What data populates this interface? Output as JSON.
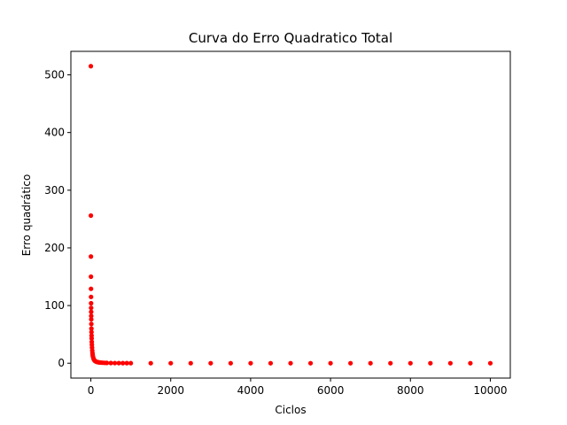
{
  "chart_data": {
    "type": "scatter",
    "title": "Curva do Erro Quadratico Total",
    "xlabel": "Ciclos",
    "ylabel": "Erro quadrático",
    "xlim": [
      -500,
      10500
    ],
    "ylim": [
      -25.75,
      540.75
    ],
    "xticks": [
      0,
      2000,
      4000,
      6000,
      8000,
      10000
    ],
    "xtick_labels": [
      "0",
      "2000",
      "4000",
      "6000",
      "8000",
      "10000"
    ],
    "yticks": [
      0,
      100,
      200,
      300,
      400,
      500
    ],
    "ytick_labels": [
      "0",
      "100",
      "200",
      "300",
      "400",
      "500"
    ],
    "grid": false,
    "legend": "none",
    "color": "#ff0000",
    "series": [
      {
        "x": [
          0,
          1,
          2,
          3,
          4,
          5,
          6,
          7,
          8,
          9,
          10,
          12,
          14,
          16,
          18,
          20,
          23,
          26,
          30,
          35,
          40,
          45,
          50,
          60,
          70,
          80,
          90,
          100,
          120,
          140,
          160,
          180,
          200,
          230,
          260,
          300,
          350,
          400,
          500,
          600,
          700,
          800,
          900,
          1000,
          1500,
          2000,
          2500,
          3000,
          3500,
          4000,
          4500,
          5000,
          5500,
          6000,
          6500,
          7000,
          7500,
          8000,
          8500,
          9000,
          9500,
          10000
        ],
        "y": [
          515,
          256,
          185,
          150,
          129,
          115,
          104,
          96,
          89,
          82,
          76,
          68,
          60,
          54,
          48,
          43,
          37,
          32,
          27,
          22,
          18,
          15,
          12.5,
          9.5,
          7.5,
          6,
          5,
          4.2,
          3.2,
          2.6,
          2.1,
          1.8,
          1.5,
          1.2,
          1.0,
          0.8,
          0.6,
          0.5,
          0.35,
          0.25,
          0.2,
          0.15,
          0.12,
          0.1,
          0.06,
          0.04,
          0.03,
          0.02,
          0.02,
          0.01,
          0.01,
          0.01,
          0.01,
          0.01,
          0.01,
          0.01,
          0.01,
          0.01,
          0.01,
          0.01,
          0.01,
          0.01
        ]
      }
    ]
  }
}
